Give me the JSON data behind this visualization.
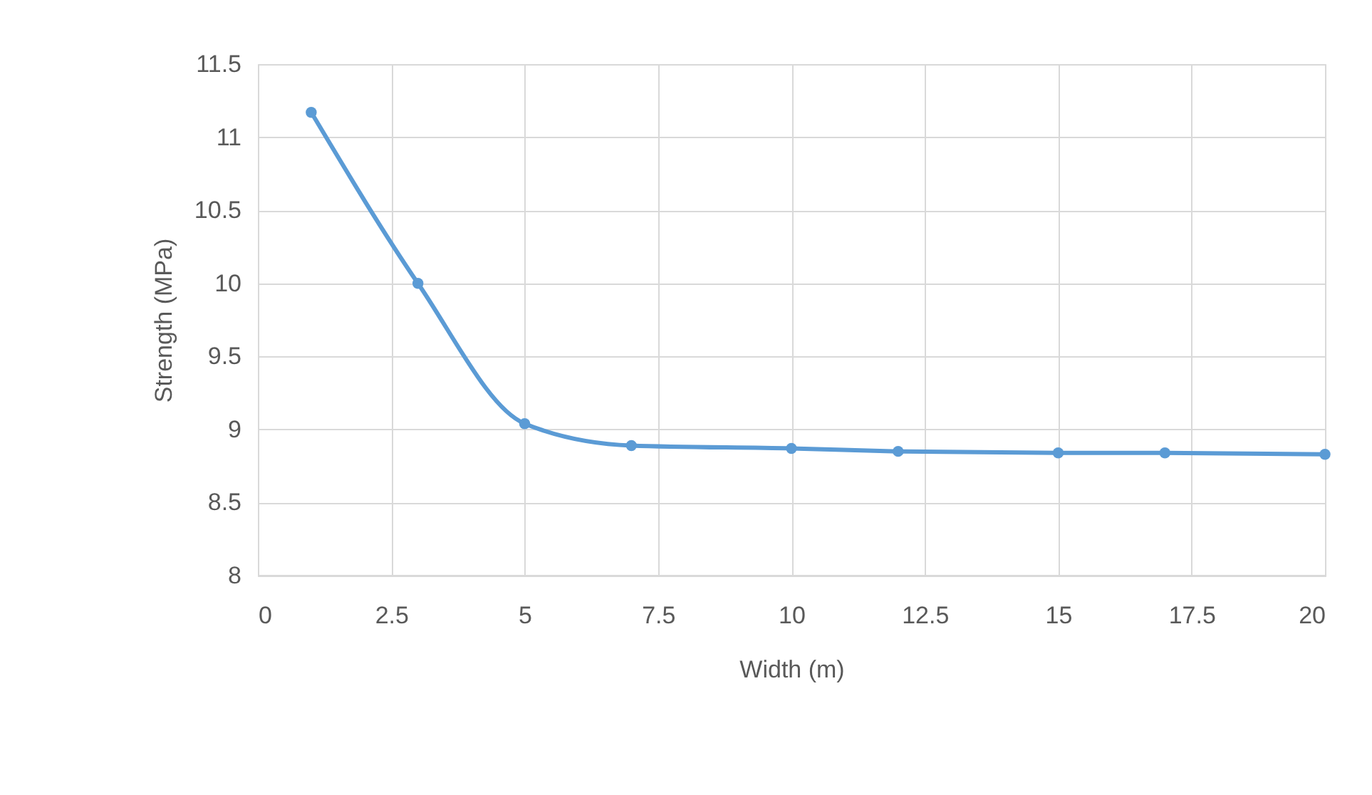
{
  "chart_data": {
    "type": "line",
    "xlabel": "Width (m)",
    "ylabel": "Strength (MPa)",
    "x": [
      1,
      3,
      5,
      7,
      10,
      12,
      15,
      17,
      20
    ],
    "series": [
      {
        "color": "#5b9bd5",
        "values": [
          11.17,
          10.0,
          9.04,
          8.89,
          8.87,
          8.85,
          8.84,
          8.84,
          8.83
        ]
      }
    ],
    "xlim": [
      0,
      20
    ],
    "xticks": [
      0,
      2.5,
      5,
      7.5,
      10,
      12.5,
      15,
      17.5,
      20
    ],
    "ylim": [
      8,
      11.5
    ],
    "yticks": [
      8,
      8.5,
      9,
      9.5,
      10,
      10.5,
      11,
      11.5
    ],
    "grid": true,
    "marker": "circle",
    "line_style": "solid"
  }
}
